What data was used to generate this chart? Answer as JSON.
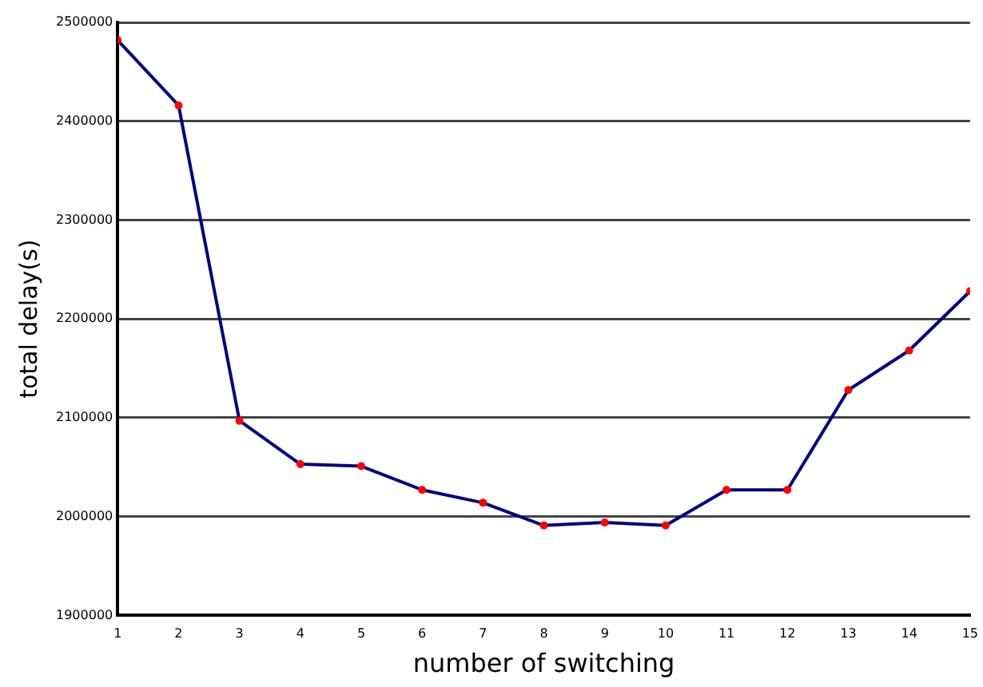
{
  "chart_data": {
    "type": "line",
    "xlabel": "number of switching",
    "ylabel": "total delay(s)",
    "x": [
      1,
      2,
      3,
      4,
      5,
      6,
      7,
      8,
      9,
      10,
      11,
      12,
      13,
      14,
      15
    ],
    "series": [
      {
        "color": "#000080",
        "values": [
          2482000,
          2416000,
          2097000,
          2053000,
          2051000,
          2027000,
          2014000,
          1991000,
          1994000,
          1991000,
          2027000,
          2027000,
          2128000,
          2168000,
          2228000
        ]
      }
    ],
    "xlim": [
      1,
      15
    ],
    "xticks": [
      1,
      2,
      3,
      4,
      5,
      6,
      7,
      8,
      9,
      10,
      11,
      12,
      13,
      14,
      15
    ],
    "ylim": [
      1900000,
      2500000
    ],
    "yticks": [
      1900000,
      2000000,
      2100000,
      2200000,
      2300000,
      2400000,
      2500000
    ],
    "grid": "y",
    "legend": false,
    "marker": "circle",
    "line_style": "solid"
  }
}
